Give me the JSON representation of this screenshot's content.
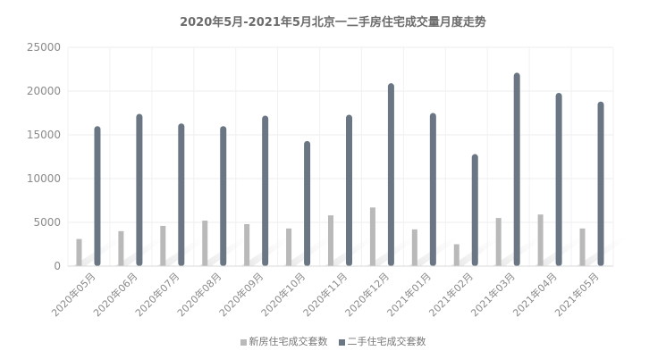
{
  "chart_data": {
    "type": "bar",
    "title": "2020年5月-2021年5月北京一二手房住宅成交量月度走势",
    "categories": [
      "2020年05月",
      "2020年06月",
      "2020年07月",
      "2020年08月",
      "2020年09月",
      "2020年10月",
      "2020年11月",
      "2020年12月",
      "2021年01月",
      "2021年02月",
      "2021年03月",
      "2021年04月",
      "2021年05月"
    ],
    "series": [
      {
        "name": "新房住宅成交套数",
        "color": "#b9b9b9",
        "values": [
          3100,
          4000,
          4600,
          5200,
          4800,
          4300,
          5800,
          6700,
          4200,
          2500,
          5500,
          5900,
          4300
        ]
      },
      {
        "name": "二手住宅成交套数",
        "color": "#6b7684",
        "values": [
          16000,
          17400,
          16300,
          16000,
          17200,
          14300,
          17300,
          20900,
          17500,
          12800,
          22100,
          19800,
          18800
        ]
      }
    ],
    "yticks": [
      "0",
      "5000",
      "10000",
      "15000",
      "20000",
      "25000"
    ],
    "ylim": [
      0,
      25000
    ],
    "grid": true,
    "legend_position": "bottom"
  }
}
